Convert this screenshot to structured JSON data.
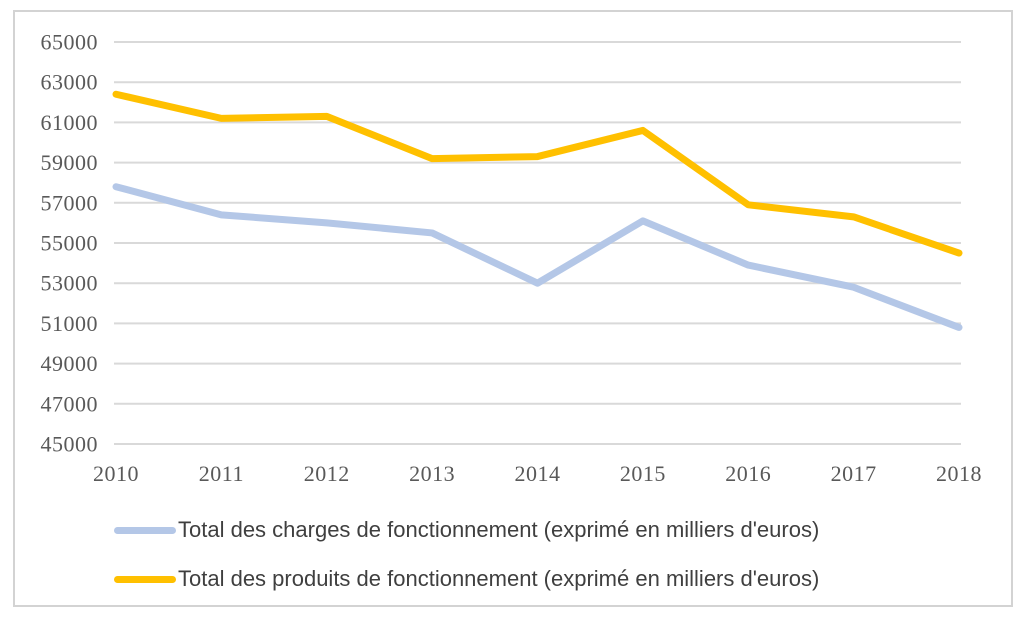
{
  "figure": {
    "background": "#ffffff",
    "border_color": "#d3d3d3"
  },
  "chart_data": {
    "type": "line",
    "title": "",
    "xlabel": "",
    "ylabel": "",
    "categories": [
      "2010",
      "2011",
      "2012",
      "2013",
      "2014",
      "2015",
      "2016",
      "2017",
      "2018"
    ],
    "series": [
      {
        "name": "Total des charges de fonctionnement (exprimé en milliers d'euros)",
        "color": "#b4c7e7",
        "values": [
          57800,
          56400,
          56000,
          55500,
          53000,
          56100,
          53900,
          52800,
          50800
        ]
      },
      {
        "name": "Total des produits de fonctionnement (exprimé en milliers d'euros)",
        "color": "#ffc000",
        "values": [
          62400,
          61200,
          61300,
          59200,
          59300,
          60600,
          56900,
          56300,
          54500
        ]
      }
    ],
    "ylim": [
      45000,
      65000
    ],
    "ytick_step": 2000,
    "ytick_labels": [
      "45000",
      "47000",
      "49000",
      "51000",
      "53000",
      "55000",
      "57000",
      "59000",
      "61000",
      "63000",
      "65000"
    ],
    "grid": true,
    "gridline_color": "#d9d9d9",
    "axis_label_color": "#595959",
    "line_width": 7,
    "legend_position": "bottom-left"
  }
}
